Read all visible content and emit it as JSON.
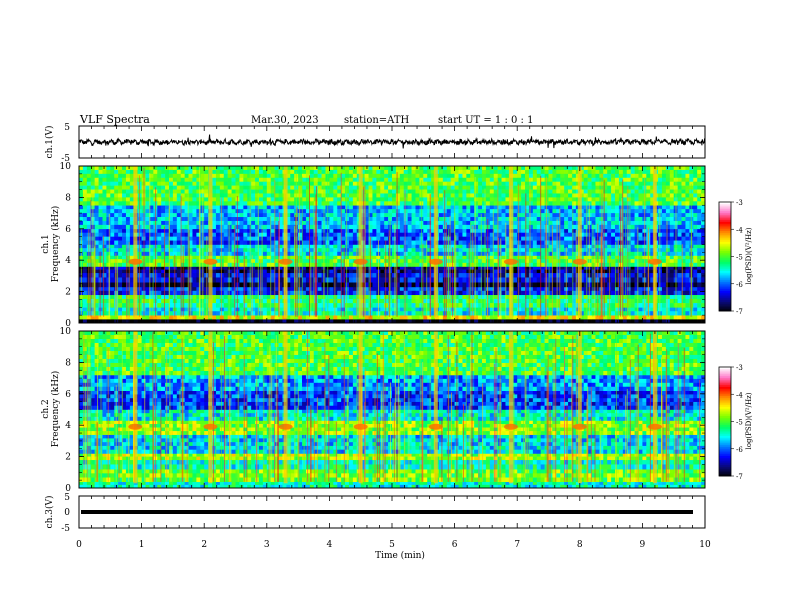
{
  "header": {
    "title": "VLF  Spectra",
    "date": "Mar.30, 2023",
    "station": "station=ATH",
    "start": "start  UT  =    1 : 0  : 1"
  },
  "colors": {
    "trace": "#000000",
    "colormap": [
      "#000000",
      "#0a0a78",
      "#0000ff",
      "#0078ff",
      "#00ffff",
      "#00ff64",
      "#78ff00",
      "#ffff00",
      "#ff8c00",
      "#ff0000",
      "#ff78c8",
      "#ffffff"
    ]
  },
  "chart_data": [
    {
      "type": "line",
      "ylabel": "ch.1(V)",
      "ylim": [
        -5,
        5
      ],
      "yticks": [
        "5",
        "-5"
      ],
      "xlim": [
        0,
        10
      ],
      "baseline_value": 0,
      "note": "continuous noisy waveform around 0 V"
    },
    {
      "type": "heatmap",
      "ylabel": "Frequency  (kHz)",
      "channel": "ch.1",
      "ylim": [
        0,
        10
      ],
      "yticks": [
        "0",
        "2",
        "4",
        "6",
        "8",
        "10"
      ],
      "xlim": [
        0,
        10
      ],
      "colorbar": {
        "label": "log(PSD)(V²/Hz)",
        "range": [
          -7,
          -3
        ],
        "ticks": [
          "-3",
          "-4",
          "-5",
          "-6",
          "-7"
        ]
      },
      "bands": [
        {
          "from": 0,
          "to": 0.25,
          "level": -7
        },
        {
          "from": 0.25,
          "to": 0.5,
          "level": -4.5
        },
        {
          "from": 0.5,
          "to": 1.0,
          "level": -5.5
        },
        {
          "from": 1.0,
          "to": 1.8,
          "level": -5.2
        },
        {
          "from": 1.8,
          "to": 2.3,
          "level": -6.2
        },
        {
          "from": 2.3,
          "to": 2.6,
          "level": -6.7
        },
        {
          "from": 2.6,
          "to": 3.2,
          "level": -6.3
        },
        {
          "from": 3.2,
          "to": 3.6,
          "level": -6.6
        },
        {
          "from": 3.6,
          "to": 4.3,
          "level": -5.0
        },
        {
          "from": 4.3,
          "to": 5.0,
          "level": -5.6
        },
        {
          "from": 5.0,
          "to": 6.0,
          "level": -6.0
        },
        {
          "from": 6.0,
          "to": 7.5,
          "level": -5.7
        },
        {
          "from": 7.5,
          "to": 10,
          "level": -5.0
        }
      ],
      "burst_times": [
        0.9,
        2.1,
        3.3,
        4.5,
        5.7,
        6.9,
        8.0,
        9.2
      ]
    },
    {
      "type": "heatmap",
      "ylabel": "Frequency  (kHz)",
      "channel": "ch.2",
      "ylim": [
        0,
        10
      ],
      "yticks": [
        "0",
        "2",
        "4",
        "6",
        "8",
        "10"
      ],
      "xlim": [
        0,
        10
      ],
      "colorbar": {
        "label": "log(PSD)(V²/Hz)",
        "range": [
          -7,
          -3
        ],
        "ticks": [
          "-3",
          "-4",
          "-5",
          "-6",
          "-7"
        ]
      },
      "bands": [
        {
          "from": 0,
          "to": 0.4,
          "level": -5.4
        },
        {
          "from": 0.4,
          "to": 1.2,
          "level": -4.9
        },
        {
          "from": 1.2,
          "to": 1.8,
          "level": -5.4
        },
        {
          "from": 1.8,
          "to": 2.2,
          "level": -4.7
        },
        {
          "from": 2.2,
          "to": 3.4,
          "level": -5.6
        },
        {
          "from": 3.4,
          "to": 4.3,
          "level": -4.8
        },
        {
          "from": 4.3,
          "to": 5.0,
          "level": -5.5
        },
        {
          "from": 5.0,
          "to": 6.2,
          "level": -6.1
        },
        {
          "from": 6.2,
          "to": 7.2,
          "level": -5.8
        },
        {
          "from": 7.2,
          "to": 10,
          "level": -5.0
        }
      ],
      "burst_times": [
        0.9,
        2.1,
        3.3,
        4.5,
        5.7,
        6.9,
        8.0,
        9.2
      ]
    },
    {
      "type": "line",
      "ylabel": "ch.3(V)",
      "ylim": [
        -5,
        5
      ],
      "yticks": [
        "5",
        "0",
        "-5"
      ],
      "xlim": [
        0,
        10
      ],
      "baseline_value": 0,
      "note": "flat thick trace near 0 V"
    }
  ],
  "xaxis": {
    "label": "Time  (min)",
    "ticks": [
      "0",
      "1",
      "2",
      "3",
      "4",
      "5",
      "6",
      "7",
      "8",
      "9",
      "10"
    ]
  }
}
